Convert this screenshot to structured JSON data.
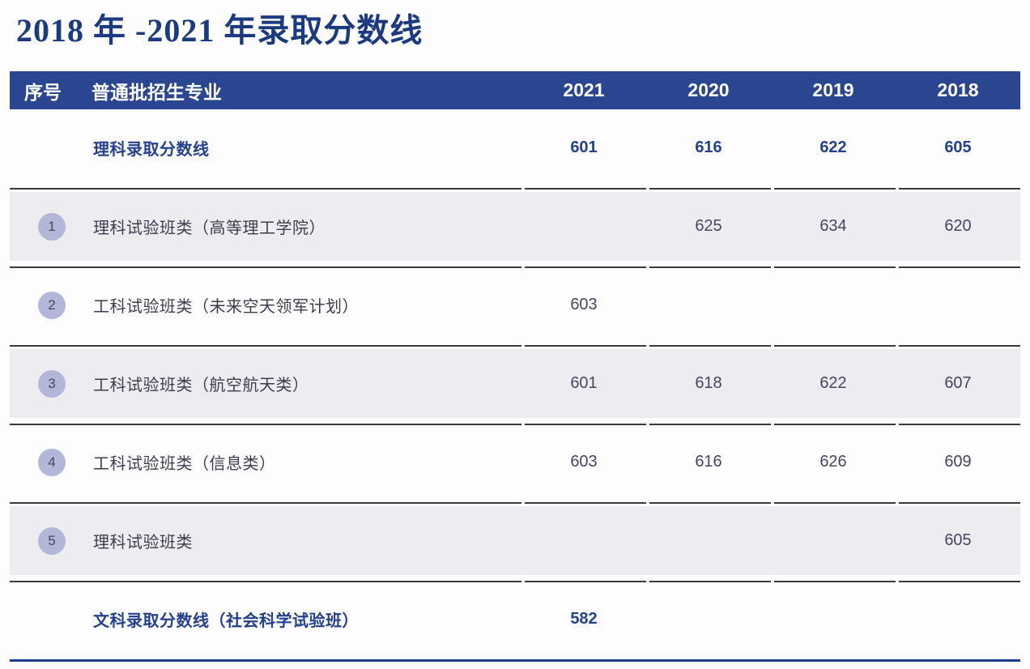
{
  "page_title": "2018 年 -2021 年录取分数线",
  "table": {
    "header": {
      "index_label": "序号",
      "major_label": "普通批招生专业",
      "years": [
        "2021",
        "2020",
        "2019",
        "2018"
      ]
    },
    "rows": [
      {
        "index": "",
        "label": "理科录取分数线",
        "emphasis": true,
        "shaded": false,
        "scores": [
          "601",
          "616",
          "622",
          "605"
        ]
      },
      {
        "index": "1",
        "label": "理科试验班类（高等理工学院）",
        "emphasis": false,
        "shaded": true,
        "scores": [
          "",
          "625",
          "634",
          "620"
        ]
      },
      {
        "index": "2",
        "label": "工科试验班类（未来空天领军计划）",
        "emphasis": false,
        "shaded": false,
        "scores": [
          "603",
          "",
          "",
          ""
        ]
      },
      {
        "index": "3",
        "label": "工科试验班类（航空航天类）",
        "emphasis": false,
        "shaded": true,
        "scores": [
          "601",
          "618",
          "622",
          "607"
        ]
      },
      {
        "index": "4",
        "label": "工科试验班类（信息类）",
        "emphasis": false,
        "shaded": false,
        "scores": [
          "603",
          "616",
          "626",
          "609"
        ]
      },
      {
        "index": "5",
        "label": "理科试验班类",
        "emphasis": false,
        "shaded": true,
        "scores": [
          "",
          "",
          "",
          "605"
        ]
      },
      {
        "index": "",
        "label": "文科录取分数线（社会科学试验班）",
        "emphasis": true,
        "shaded": false,
        "scores": [
          "582",
          "",
          "",
          ""
        ]
      }
    ]
  },
  "colors": {
    "header_bg": "#2b4691",
    "title_color": "#1c3a80",
    "emphasis_color": "#23418f",
    "shaded_row_bg": "#ededf1",
    "row_line": "#3b3b3d",
    "bottom_line": "#1f3c8c",
    "badge_bg": "#b2b6d8"
  }
}
